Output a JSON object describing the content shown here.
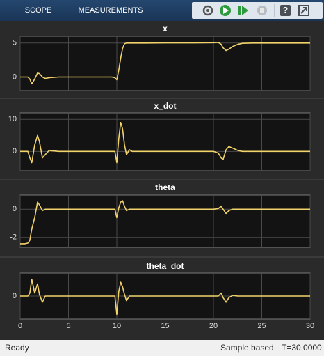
{
  "toolbar": {
    "tabs": [
      "SCOPE",
      "MEASUREMENTS"
    ],
    "help_icon": "?"
  },
  "chart_data": [
    {
      "type": "line",
      "title": "x",
      "color": "#f2d36b",
      "x": [
        0,
        0.5,
        0.8,
        1,
        1.2,
        1.5,
        1.8,
        2,
        2.3,
        2.6,
        3,
        4,
        6,
        8,
        9.5,
        9.8,
        10,
        10.2,
        10.4,
        10.6,
        10.8,
        11,
        11.3,
        11.6,
        12,
        13,
        15,
        18,
        20,
        20.5,
        20.8,
        21,
        21.3,
        21.6,
        22,
        22.5,
        23,
        24,
        26,
        28,
        30
      ],
      "values": [
        0,
        0,
        0,
        -0.3,
        -1.0,
        -0.3,
        0.6,
        0.5,
        0,
        -0.2,
        -0.1,
        0,
        0,
        0,
        0,
        -0.1,
        -0.4,
        1,
        2.8,
        4.2,
        4.9,
        5,
        5,
        5,
        5,
        5,
        5.02,
        5.02,
        5.05,
        5.1,
        4.8,
        4.3,
        3.9,
        4.1,
        4.5,
        4.8,
        4.95,
        5,
        5,
        5,
        5
      ],
      "xlim": [
        0,
        30
      ],
      "xticks": [
        0,
        5,
        10,
        15,
        20,
        25,
        30
      ],
      "ylim": [
        -2,
        6
      ],
      "yticks": [
        0,
        5
      ],
      "grid": true
    },
    {
      "type": "line",
      "title": "x_dot",
      "color": "#f2d36b",
      "x": [
        0,
        0.5,
        0.8,
        1,
        1.2,
        1.5,
        1.8,
        2,
        2.3,
        2.6,
        3,
        4,
        6,
        8,
        9.5,
        9.8,
        10,
        10.2,
        10.4,
        10.6,
        10.8,
        11,
        11.3,
        11.6,
        12,
        13,
        15,
        18,
        20,
        20.5,
        20.8,
        21,
        21.3,
        21.6,
        22,
        22.5,
        23,
        24,
        26,
        28,
        30
      ],
      "values": [
        0,
        0,
        0,
        -2,
        -3.5,
        2,
        5,
        3,
        -2,
        -1,
        0.3,
        0,
        0,
        0,
        0,
        0,
        -3.5,
        4,
        9,
        7,
        2,
        -1,
        0.5,
        0,
        0,
        0,
        0,
        0,
        0,
        -0.5,
        -2,
        -2.5,
        0.5,
        1.5,
        1,
        0.3,
        0,
        0,
        0,
        0,
        0
      ],
      "xlim": [
        0,
        30
      ],
      "xticks": [
        0,
        5,
        10,
        15,
        20,
        25,
        30
      ],
      "ylim": [
        -6,
        12
      ],
      "yticks": [
        0,
        10
      ],
      "grid": true
    },
    {
      "type": "line",
      "title": "theta",
      "color": "#f2d36b",
      "x": [
        0,
        0.5,
        0.8,
        1,
        1.2,
        1.5,
        1.8,
        2,
        2.3,
        2.6,
        3,
        4,
        6,
        8,
        9.5,
        9.8,
        10,
        10.2,
        10.4,
        10.6,
        10.8,
        11,
        11.3,
        11.6,
        12,
        13,
        15,
        18,
        20,
        20.5,
        20.8,
        21,
        21.3,
        21.6,
        22,
        22.5,
        23,
        24,
        26,
        28,
        30
      ],
      "values": [
        -2.45,
        -2.45,
        -2.4,
        -2.2,
        -1.4,
        -0.6,
        0.5,
        0.3,
        -0.1,
        0,
        0,
        0,
        0,
        0,
        0,
        0,
        -0.6,
        0.1,
        0.5,
        0.6,
        0.2,
        -0.1,
        0,
        0,
        0,
        0,
        0,
        0,
        0,
        0.05,
        0.2,
        0,
        -0.3,
        -0.1,
        0,
        0,
        0,
        0,
        0,
        0,
        0
      ],
      "xlim": [
        0,
        30
      ],
      "xticks": [
        0,
        5,
        10,
        15,
        20,
        25,
        30
      ],
      "ylim": [
        -2.7,
        1
      ],
      "yticks": [
        -2,
        0
      ],
      "grid": true
    },
    {
      "type": "line",
      "title": "theta_dot",
      "color": "#f2d36b",
      "x": [
        0,
        0.5,
        0.8,
        1,
        1.2,
        1.5,
        1.8,
        2,
        2.3,
        2.6,
        3,
        4,
        6,
        8,
        9.5,
        9.8,
        10,
        10.2,
        10.4,
        10.6,
        10.8,
        11,
        11.3,
        11.6,
        12,
        13,
        15,
        18,
        20,
        20.5,
        20.8,
        21,
        21.3,
        21.6,
        22,
        22.5,
        23,
        24,
        26,
        28,
        30
      ],
      "values": [
        0,
        0,
        0,
        0.2,
        1.1,
        0.2,
        0.8,
        0.1,
        -0.4,
        0,
        0,
        0,
        0,
        0,
        0,
        0,
        -1.2,
        0.3,
        0.9,
        0.6,
        0.1,
        -0.3,
        0,
        0,
        0,
        0,
        0,
        0,
        0,
        0,
        0.2,
        -0.1,
        -0.4,
        -0.1,
        0.05,
        0,
        0,
        0,
        0,
        0,
        0
      ],
      "xlim": [
        0,
        30
      ],
      "xticks": [
        0,
        5,
        10,
        15,
        20,
        25,
        30
      ],
      "ylim": [
        -1.5,
        1.5
      ],
      "yticks": [
        0
      ],
      "grid": true
    }
  ],
  "status_bar": {
    "left": "Ready",
    "mode": "Sample based",
    "time": "T=30.0000"
  }
}
